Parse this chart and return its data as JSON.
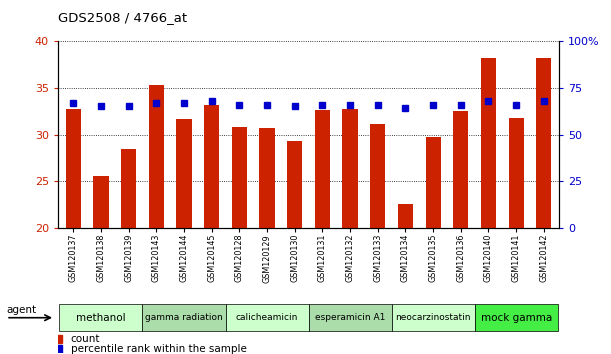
{
  "title": "GDS2508 / 4766_at",
  "samples": [
    "GSM120137",
    "GSM120138",
    "GSM120139",
    "GSM120143",
    "GSM120144",
    "GSM120145",
    "GSM120128",
    "GSM120129",
    "GSM120130",
    "GSM120131",
    "GSM120132",
    "GSM120133",
    "GSM120134",
    "GSM120135",
    "GSM120136",
    "GSM120140",
    "GSM120141",
    "GSM120142"
  ],
  "counts": [
    32.7,
    25.6,
    28.5,
    35.3,
    31.7,
    33.2,
    30.8,
    30.7,
    29.3,
    32.6,
    32.7,
    31.1,
    22.6,
    29.7,
    32.5,
    38.2,
    31.8,
    38.2
  ],
  "percentiles": [
    67,
    65,
    65,
    67,
    67,
    68,
    66,
    66,
    65,
    66,
    66,
    66,
    64,
    66,
    66,
    68,
    66,
    68
  ],
  "bar_color": "#cc2200",
  "dot_color": "#0000cc",
  "ylim_left": [
    20,
    40
  ],
  "ylim_right": [
    0,
    100
  ],
  "yticks_left": [
    20,
    25,
    30,
    35,
    40
  ],
  "yticks_right": [
    0,
    25,
    50,
    75,
    100
  ],
  "ytick_labels_right": [
    "0",
    "25",
    "50",
    "75",
    "100%"
  ],
  "groups": [
    {
      "label": "methanol",
      "start": 0,
      "end": 3,
      "color": "#ccffcc"
    },
    {
      "label": "gamma radiation",
      "start": 3,
      "end": 6,
      "color": "#aaddaa"
    },
    {
      "label": "calicheamicin",
      "start": 6,
      "end": 9,
      "color": "#ccffcc"
    },
    {
      "label": "esperamicin A1",
      "start": 9,
      "end": 12,
      "color": "#aaddaa"
    },
    {
      "label": "neocarzinostatin",
      "start": 12,
      "end": 15,
      "color": "#ccffcc"
    },
    {
      "label": "mock gamma",
      "start": 15,
      "end": 18,
      "color": "#44ee44"
    }
  ],
  "agent_label": "agent",
  "legend_count_label": "count",
  "legend_percentile_label": "percentile rank within the sample",
  "tick_color_left": "#cc2200",
  "tick_color_right": "#0000cc",
  "bar_bottom": 20,
  "xlim": [
    -0.55,
    17.55
  ]
}
